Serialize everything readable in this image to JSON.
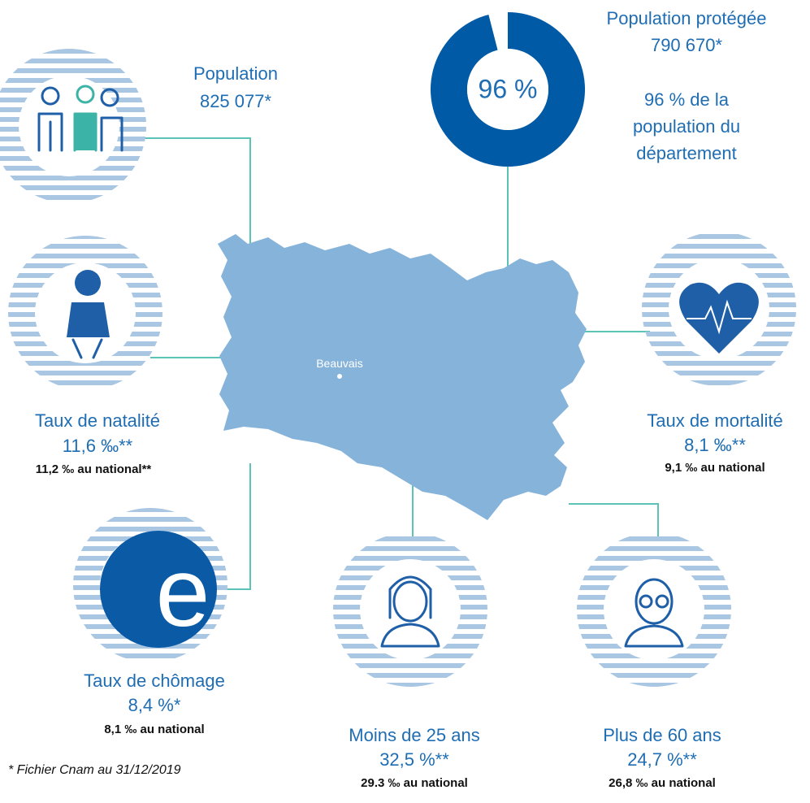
{
  "map_label": "Beauvais",
  "footnote": "* Fichier Cnam au 31/12/2019",
  "population": {
    "title": "Population",
    "value": "825 077*"
  },
  "protected": {
    "title": "Population protégée",
    "value": "790 670*",
    "share": {
      "value": 96,
      "label": "96 %"
    },
    "note_lines": [
      "96 % de la",
      "population du",
      "département"
    ]
  },
  "natality": {
    "title": "Taux de natalité",
    "value": "11,6 ‰**",
    "national": "11,2 ‰ au national**"
  },
  "mortality": {
    "title": "Taux de mortalité",
    "value": "8,1 ‰**",
    "national": "9,1 ‰ au national"
  },
  "unemployment": {
    "title": "Taux de chômage",
    "value": "8,4 %*",
    "national": "8,1 ‰ au national"
  },
  "under25": {
    "title": "Moins de 25 ans",
    "value": "32,5 %**",
    "national": "29.3 ‰ au national"
  },
  "over60": {
    "title": "Plus de 60 ans",
    "value": "24,7 %**",
    "national": "26,8 ‰ au national"
  }
}
